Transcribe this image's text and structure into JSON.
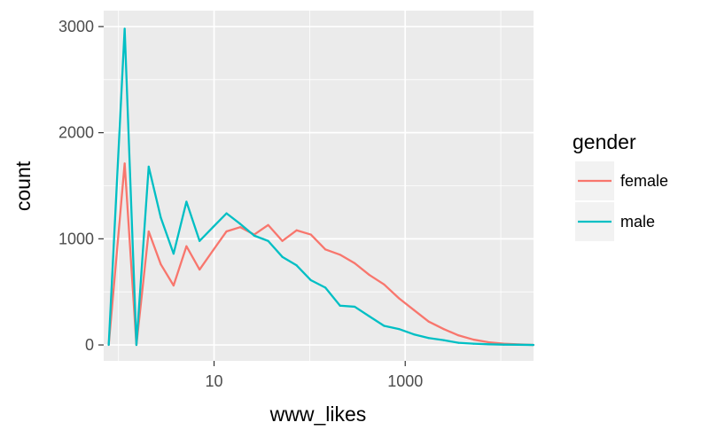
{
  "chart_data": {
    "type": "line",
    "xlabel": "www_likes",
    "ylabel": "count",
    "x_scale": "log10",
    "xlim": [
      0.7,
      22000
    ],
    "ylim": [
      -150,
      3150
    ],
    "x_ticks": [
      {
        "value": 10,
        "label": "10"
      },
      {
        "value": 1000,
        "label": "1000"
      }
    ],
    "y_ticks": [
      {
        "value": 0,
        "label": "0"
      },
      {
        "value": 1000,
        "label": "1000"
      },
      {
        "value": 2000,
        "label": "2000"
      },
      {
        "value": 3000,
        "label": "3000"
      }
    ],
    "grid": true,
    "legend": {
      "title": "gender",
      "position": "right"
    },
    "x": [
      0.79,
      1.16,
      1.54,
      2.07,
      2.77,
      3.77,
      5.14,
      7.05,
      9.74,
      13.5,
      18.8,
      26.3,
      36.8,
      51.8,
      73,
      103,
      146,
      208,
      296,
      421,
      601,
      859,
      1229,
      1760,
      2521,
      3615,
      5187,
      7447,
      10697,
      15371,
      22000
    ],
    "series": [
      {
        "name": "female",
        "color": "#F8766D",
        "values": [
          0,
          1710,
          0,
          1070,
          760,
          560,
          930,
          710,
          890,
          1070,
          1110,
          1040,
          1130,
          980,
          1080,
          1040,
          900,
          850,
          770,
          660,
          570,
          440,
          330,
          220,
          150,
          90,
          50,
          25,
          12,
          5,
          0
        ]
      },
      {
        "name": "male",
        "color": "#00BFC4",
        "values": [
          0,
          2980,
          0,
          1680,
          1200,
          860,
          1350,
          980,
          1110,
          1240,
          1140,
          1030,
          980,
          830,
          750,
          610,
          540,
          370,
          360,
          270,
          180,
          150,
          100,
          65,
          45,
          20,
          12,
          6,
          3,
          2,
          0
        ]
      }
    ]
  }
}
